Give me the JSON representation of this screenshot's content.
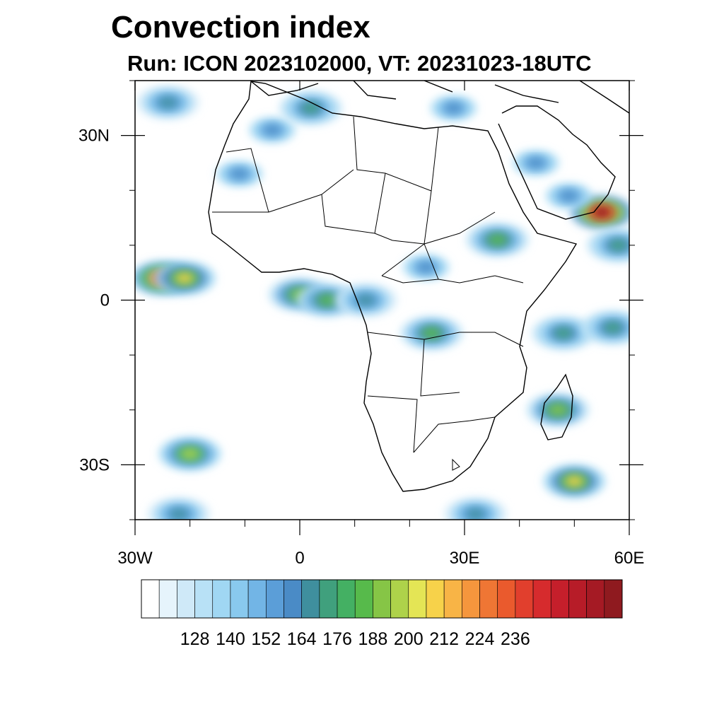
{
  "title": "Convection index",
  "subtitle": "Run: ICON 2023102000,  VT: 20231023-18UTC",
  "map": {
    "region": "Africa",
    "lon_range": [
      -30,
      60
    ],
    "lat_range": [
      -40,
      40
    ],
    "lat_ticks": [
      {
        "value": 30,
        "label": "30N"
      },
      {
        "value": 0,
        "label": "0"
      },
      {
        "value": -30,
        "label": "30S"
      }
    ],
    "lon_ticks": [
      {
        "value": -30,
        "label": "30W"
      },
      {
        "value": 0,
        "label": "0"
      },
      {
        "value": 30,
        "label": "30E"
      },
      {
        "value": 60,
        "label": "60E"
      }
    ],
    "colorbar": {
      "colors": [
        "#ffffff",
        "#e6f4fc",
        "#cfe9f8",
        "#b8e1f6",
        "#a0d7f3",
        "#89c9ee",
        "#72b5e6",
        "#5b9ed8",
        "#4a8bc6",
        "#3f8f9e",
        "#40a07d",
        "#44b063",
        "#57ba4b",
        "#86c546",
        "#aed24a",
        "#e4e555",
        "#f7d24a",
        "#f8b446",
        "#f5963d",
        "#ef7634",
        "#ea5a2d",
        "#e13f2d",
        "#d62b2d",
        "#c51f2b",
        "#b71c28",
        "#a51a24",
        "#8f1a1f"
      ],
      "labels": [
        "128",
        "140",
        "152",
        "164",
        "176",
        "188",
        "200",
        "212",
        "224",
        "236"
      ]
    },
    "convection_cells": [
      {
        "lon": -24,
        "lat": 36,
        "level": 0.35
      },
      {
        "lon": -5,
        "lat": 31,
        "level": 0.3
      },
      {
        "lon": 2,
        "lat": 35,
        "level": 0.4
      },
      {
        "lon": -11,
        "lat": 23,
        "level": 0.3
      },
      {
        "lon": -25,
        "lat": 4,
        "level": 0.85
      },
      {
        "lon": -21,
        "lat": 4,
        "level": 0.6
      },
      {
        "lon": 0,
        "lat": 1,
        "level": 0.5
      },
      {
        "lon": 5,
        "lat": 0,
        "level": 0.45
      },
      {
        "lon": 12,
        "lat": 0,
        "level": 0.35
      },
      {
        "lon": 24,
        "lat": -6,
        "level": 0.45
      },
      {
        "lon": 23,
        "lat": 6,
        "level": 0.3
      },
      {
        "lon": 36,
        "lat": 11,
        "level": 0.45
      },
      {
        "lon": 55,
        "lat": 16,
        "level": 1.0
      },
      {
        "lon": 58,
        "lat": 10,
        "level": 0.4
      },
      {
        "lon": 49,
        "lat": 19,
        "level": 0.3
      },
      {
        "lon": 48,
        "lat": -6,
        "level": 0.4
      },
      {
        "lon": 57,
        "lat": -5,
        "level": 0.4
      },
      {
        "lon": 47,
        "lat": -20,
        "level": 0.5
      },
      {
        "lon": 50,
        "lat": -33,
        "level": 0.6
      },
      {
        "lon": -20,
        "lat": -28,
        "level": 0.55
      },
      {
        "lon": -22,
        "lat": -39,
        "level": 0.35
      },
      {
        "lon": 32,
        "lat": -39,
        "level": 0.35
      },
      {
        "lon": 43,
        "lat": 25,
        "level": 0.3
      },
      {
        "lon": 28,
        "lat": 35,
        "level": 0.3
      }
    ]
  }
}
